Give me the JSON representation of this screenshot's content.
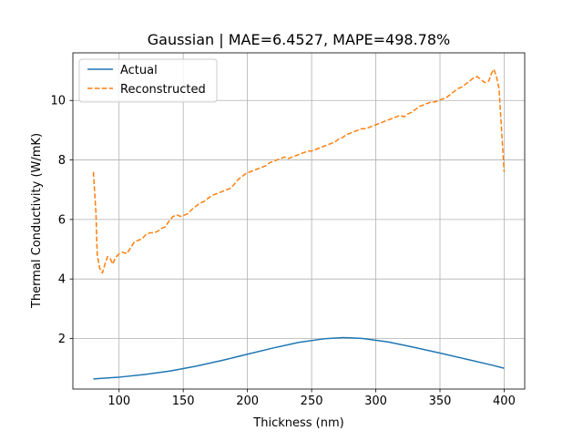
{
  "chart_data": {
    "type": "line",
    "title": "Gaussian | MAE=6.4527, MAPE=498.78%",
    "xlabel": "Thickness (nm)",
    "ylabel": "Thermal Conductivity (W/mK)",
    "xlim": [
      64,
      416
    ],
    "ylim": [
      0.3,
      11.6
    ],
    "x_ticks": [
      100,
      150,
      200,
      250,
      300,
      350,
      400
    ],
    "y_ticks": [
      2,
      4,
      6,
      8,
      10
    ],
    "grid": true,
    "legend_position": "upper-left",
    "series": [
      {
        "name": "Actual",
        "color": "#1f77b4",
        "style": "solid",
        "x": [
          80,
          100,
          120,
          140,
          160,
          180,
          200,
          220,
          240,
          260,
          275,
          290,
          310,
          330,
          350,
          370,
          390,
          400
        ],
        "y": [
          0.64,
          0.7,
          0.79,
          0.91,
          1.07,
          1.26,
          1.47,
          1.68,
          1.87,
          1.99,
          2.03,
          2.0,
          1.88,
          1.7,
          1.51,
          1.31,
          1.11,
          1.0
        ]
      },
      {
        "name": "Reconstructed",
        "color": "#ff7f0e",
        "style": "dashed",
        "x": [
          80,
          82,
          83,
          85,
          87,
          89,
          91,
          93,
          95,
          97,
          100,
          103,
          106,
          109,
          112,
          115,
          118,
          121,
          124,
          127,
          130,
          133,
          136,
          139,
          142,
          145,
          148,
          151,
          154,
          157,
          160,
          163,
          166,
          169,
          172,
          175,
          178,
          181,
          184,
          187,
          190,
          193,
          196,
          199,
          202,
          205,
          208,
          211,
          214,
          217,
          220,
          223,
          226,
          229,
          232,
          235,
          238,
          241,
          244,
          247,
          250,
          253,
          256,
          259,
          262,
          265,
          268,
          271,
          274,
          277,
          280,
          283,
          286,
          289,
          292,
          295,
          298,
          301,
          304,
          307,
          310,
          313,
          316,
          319,
          322,
          325,
          328,
          331,
          334,
          337,
          340,
          343,
          346,
          349,
          352,
          355,
          358,
          361,
          364,
          367,
          370,
          373,
          376,
          379,
          382,
          385,
          388,
          390,
          392,
          394,
          396,
          398,
          400
        ],
        "y": [
          7.6,
          6.2,
          4.8,
          4.35,
          4.2,
          4.5,
          4.75,
          4.7,
          4.5,
          4.7,
          4.85,
          4.9,
          4.85,
          5.05,
          5.25,
          5.3,
          5.35,
          5.5,
          5.55,
          5.55,
          5.6,
          5.7,
          5.75,
          5.95,
          6.1,
          6.15,
          6.1,
          6.15,
          6.2,
          6.35,
          6.45,
          6.55,
          6.6,
          6.7,
          6.8,
          6.85,
          6.9,
          6.95,
          7.0,
          7.05,
          7.2,
          7.35,
          7.45,
          7.55,
          7.6,
          7.65,
          7.7,
          7.75,
          7.8,
          7.9,
          7.95,
          8.0,
          8.05,
          8.1,
          8.05,
          8.1,
          8.15,
          8.2,
          8.25,
          8.3,
          8.3,
          8.35,
          8.4,
          8.45,
          8.5,
          8.55,
          8.6,
          8.7,
          8.75,
          8.85,
          8.9,
          8.95,
          9.0,
          9.05,
          9.05,
          9.1,
          9.15,
          9.2,
          9.25,
          9.3,
          9.35,
          9.4,
          9.45,
          9.5,
          9.45,
          9.55,
          9.6,
          9.7,
          9.8,
          9.85,
          9.9,
          9.95,
          9.95,
          10.0,
          10.05,
          10.1,
          10.2,
          10.3,
          10.4,
          10.45,
          10.55,
          10.65,
          10.75,
          10.8,
          10.7,
          10.6,
          10.65,
          10.9,
          11.05,
          10.8,
          10.4,
          9.0,
          7.6
        ]
      }
    ]
  }
}
